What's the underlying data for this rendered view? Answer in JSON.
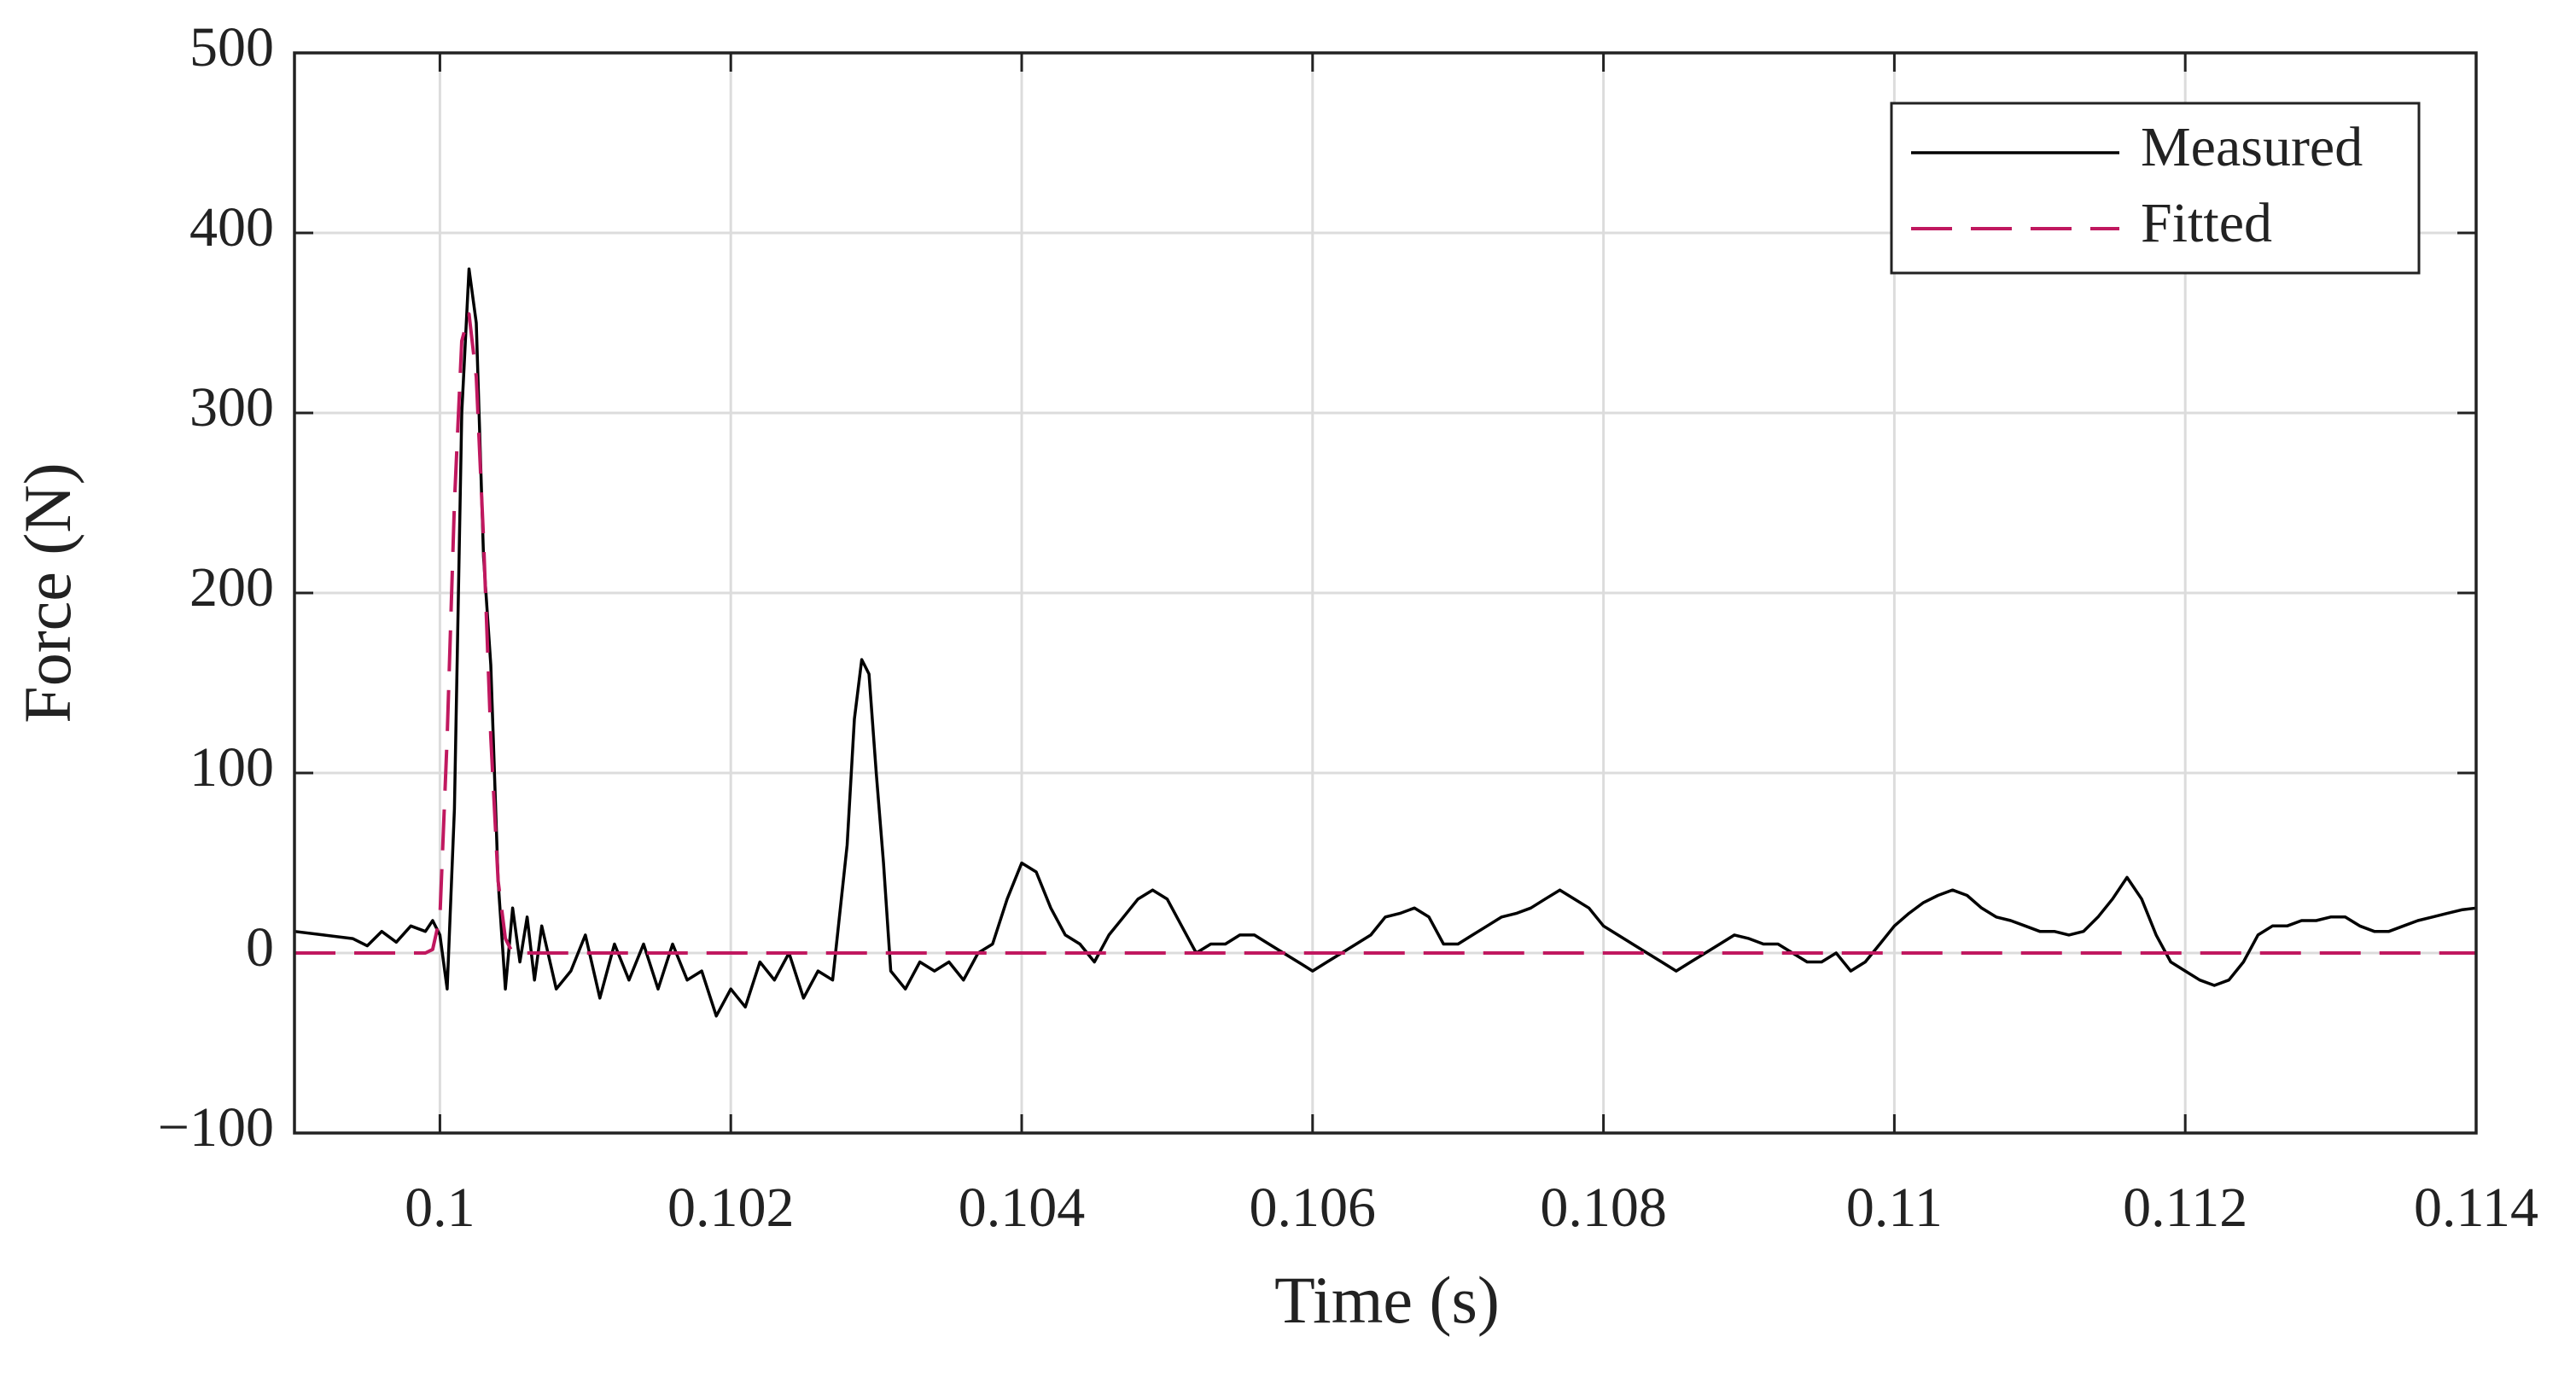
{
  "chart_data": {
    "type": "line",
    "xlabel": "Time (s)",
    "ylabel": "Force (N)",
    "xlim": [
      0.099,
      0.114
    ],
    "ylim": [
      -100,
      500
    ],
    "xticks": [
      0.1,
      0.102,
      0.104,
      0.106,
      0.108,
      0.11,
      0.112,
      0.114
    ],
    "yticks": [
      {
        "value": -100,
        "label": "−100"
      },
      0,
      100,
      200,
      300,
      400,
      500
    ],
    "grid": true,
    "legend": "upper right",
    "x": [
      0.099,
      0.0992,
      0.0994,
      0.0995,
      0.0996,
      0.0997,
      0.0998,
      0.0999,
      0.09995,
      0.1,
      0.10005,
      0.1001,
      0.10015,
      0.1002,
      0.10025,
      0.1003,
      0.10035,
      0.1004,
      0.10045,
      0.1005,
      0.10055,
      0.1006,
      0.10065,
      0.1007,
      0.1008,
      0.1009,
      0.101,
      0.1011,
      0.1012,
      0.1013,
      0.1014,
      0.1015,
      0.1016,
      0.1017,
      0.1018,
      0.1019,
      0.102,
      0.1021,
      0.1022,
      0.1023,
      0.1024,
      0.1025,
      0.1026,
      0.1027,
      0.1028,
      0.10285,
      0.1029,
      0.10295,
      0.103,
      0.10305,
      0.1031,
      0.1032,
      0.1033,
      0.1034,
      0.1035,
      0.1036,
      0.1037,
      0.1038,
      0.1039,
      0.104,
      0.1041,
      0.1042,
      0.1043,
      0.1044,
      0.1045,
      0.1046,
      0.1047,
      0.1048,
      0.1049,
      0.105,
      0.1051,
      0.1052,
      0.1053,
      0.1054,
      0.1055,
      0.1056,
      0.1057,
      0.1058,
      0.1059,
      0.106,
      0.1061,
      0.1062,
      0.1063,
      0.1064,
      0.1065,
      0.1066,
      0.1067,
      0.1068,
      0.1069,
      0.107,
      0.1071,
      0.1072,
      0.1073,
      0.1074,
      0.1075,
      0.1076,
      0.1077,
      0.1078,
      0.1079,
      0.108,
      0.1081,
      0.1082,
      0.1083,
      0.1084,
      0.1085,
      0.1086,
      0.1087,
      0.1088,
      0.1089,
      0.109,
      0.1091,
      0.1092,
      0.1093,
      0.1094,
      0.1095,
      0.1096,
      0.1097,
      0.1098,
      0.1099,
      0.11,
      0.1101,
      0.1102,
      0.1103,
      0.1104,
      0.1105,
      0.1106,
      0.1107,
      0.1108,
      0.1109,
      0.111,
      0.1111,
      0.1112,
      0.1113,
      0.1114,
      0.1115,
      0.1116,
      0.1117,
      0.1118,
      0.1119,
      0.112,
      0.1121,
      0.1122,
      0.1123,
      0.1124,
      0.1125,
      0.1126,
      0.1127,
      0.1128,
      0.1129,
      0.113,
      0.1131,
      0.1132,
      0.1133,
      0.1134,
      0.1135,
      0.1136,
      0.1137,
      0.1138,
      0.1139,
      0.114
    ],
    "series": [
      {
        "name": "Measured",
        "color": "#000000",
        "dash": false,
        "values": [
          12,
          10,
          8,
          4,
          12,
          6,
          15,
          12,
          18,
          10,
          -20,
          80,
          300,
          380,
          350,
          220,
          160,
          40,
          -20,
          25,
          -5,
          20,
          -15,
          15,
          -20,
          -10,
          10,
          -25,
          5,
          -15,
          5,
          -20,
          5,
          -15,
          -10,
          -35,
          -20,
          -30,
          -5,
          -15,
          0,
          -25,
          -10,
          -15,
          60,
          130,
          163,
          155,
          100,
          50,
          -10,
          -20,
          -5,
          -10,
          -5,
          -15,
          0,
          5,
          30,
          50,
          45,
          25,
          10,
          5,
          -5,
          10,
          20,
          30,
          35,
          30,
          15,
          0,
          5,
          5,
          10,
          10,
          5,
          0,
          -5,
          -10,
          -5,
          0,
          5,
          10,
          20,
          22,
          25,
          20,
          5,
          5,
          10,
          15,
          20,
          22,
          25,
          30,
          35,
          30,
          25,
          15,
          10,
          5,
          0,
          -5,
          -10,
          -5,
          0,
          5,
          10,
          8,
          5,
          5,
          0,
          -5,
          -5,
          0,
          -10,
          -5,
          5,
          15,
          22,
          28,
          32,
          35,
          32,
          25,
          20,
          18,
          15,
          12,
          12,
          10,
          12,
          20,
          30,
          42,
          30,
          10,
          -5,
          -10,
          -15,
          -18,
          -15,
          -5,
          10,
          15,
          15,
          18,
          18,
          20,
          20,
          15,
          12,
          12,
          15,
          18,
          20,
          22,
          24,
          25
        ]
      },
      {
        "name": "Fitted",
        "color": "#c0185f",
        "dash": true,
        "values": [
          0,
          0,
          0,
          0,
          0,
          0,
          0,
          0,
          2,
          20,
          120,
          250,
          340,
          355,
          320,
          230,
          120,
          40,
          8,
          0,
          0,
          0,
          0,
          0,
          0,
          0,
          0,
          0,
          0,
          0,
          0,
          0,
          0,
          0,
          0,
          0,
          0,
          0,
          0,
          0,
          0,
          0,
          0,
          0,
          0,
          0,
          0,
          0,
          0,
          0,
          0,
          0,
          0,
          0,
          0,
          0,
          0,
          0,
          0,
          0,
          0,
          0,
          0,
          0,
          0,
          0,
          0,
          0,
          0,
          0,
          0,
          0,
          0,
          0,
          0,
          0,
          0,
          0,
          0,
          0,
          0,
          0,
          0,
          0,
          0,
          0,
          0,
          0,
          0,
          0,
          0,
          0,
          0,
          0,
          0,
          0,
          0,
          0,
          0,
          0,
          0,
          0,
          0,
          0,
          0,
          0,
          0,
          0,
          0,
          0,
          0,
          0,
          0,
          0,
          0,
          0,
          0,
          0,
          0,
          0,
          0,
          0,
          0,
          0,
          0,
          0,
          0,
          0,
          0,
          0,
          0,
          0,
          0,
          0,
          0,
          0,
          0,
          0,
          0,
          0,
          0,
          0,
          0,
          0,
          0,
          0,
          0,
          0,
          0,
          0,
          0,
          0,
          0,
          0,
          0,
          0,
          0,
          0,
          0,
          0
        ]
      }
    ]
  }
}
